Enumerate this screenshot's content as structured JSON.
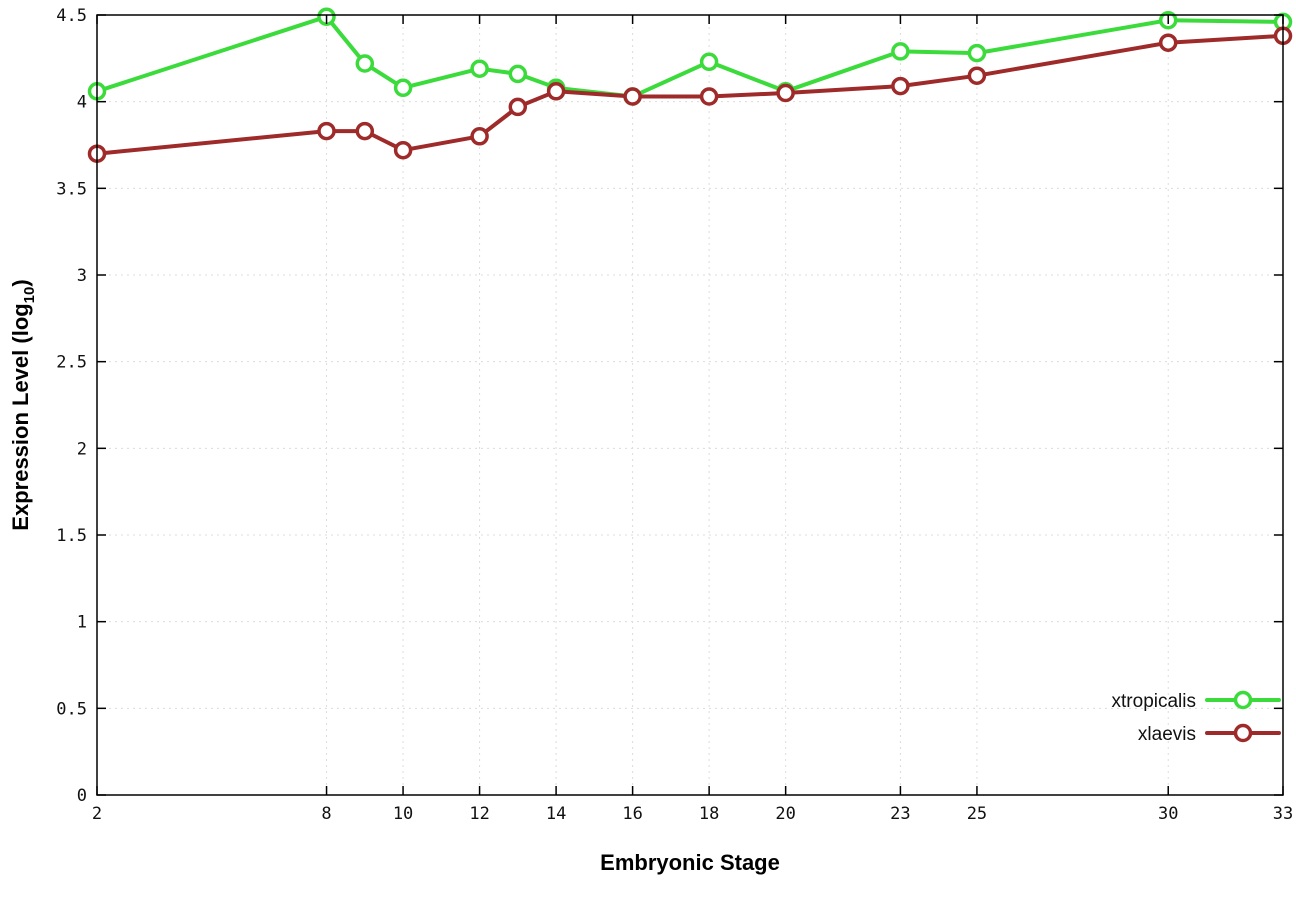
{
  "figure": {
    "background": "#ffffff",
    "xlabel": "Embryonic Stage",
    "ylabel_prefix": "Expression Level (log",
    "ylabel_sub": "10",
    "ylabel_suffix": ")"
  },
  "chart_data": {
    "type": "line",
    "title": "",
    "xlabel": "Embryonic Stage",
    "ylabel": "Expression Level (log10)",
    "xlim": [
      2,
      33
    ],
    "ylim": [
      0,
      4.5
    ],
    "grid": true,
    "legend_position": "bottom-right",
    "x_ticks": [
      2,
      8,
      10,
      12,
      14,
      16,
      18,
      20,
      23,
      25,
      30,
      33
    ],
    "x_tick_labels": [
      "2",
      "8",
      "10",
      "12",
      "14",
      "16",
      "18",
      "20",
      "23",
      "25",
      "30",
      "33"
    ],
    "y_ticks": [
      0,
      0.5,
      1,
      1.5,
      2,
      2.5,
      3,
      3.5,
      4,
      4.5
    ],
    "y_tick_labels": [
      "0",
      "0.5",
      "1",
      "1.5",
      "2",
      "2.5",
      "3",
      "3.5",
      "4",
      "4.5"
    ],
    "x": [
      2,
      8,
      9,
      10,
      12,
      13,
      14,
      16,
      18,
      20,
      23,
      25,
      30,
      33
    ],
    "series": [
      {
        "name": "xtropicalis",
        "color": "#3bdb3b",
        "values": [
          4.06,
          4.49,
          4.22,
          4.08,
          4.19,
          4.16,
          4.08,
          4.03,
          4.23,
          4.06,
          4.29,
          4.28,
          4.47,
          4.46
        ]
      },
      {
        "name": "xlaevis",
        "color": "#9e2a2a",
        "values": [
          3.7,
          3.83,
          3.83,
          3.72,
          3.8,
          3.97,
          4.06,
          4.03,
          4.03,
          4.05,
          4.09,
          4.15,
          4.34,
          4.38
        ]
      }
    ]
  }
}
